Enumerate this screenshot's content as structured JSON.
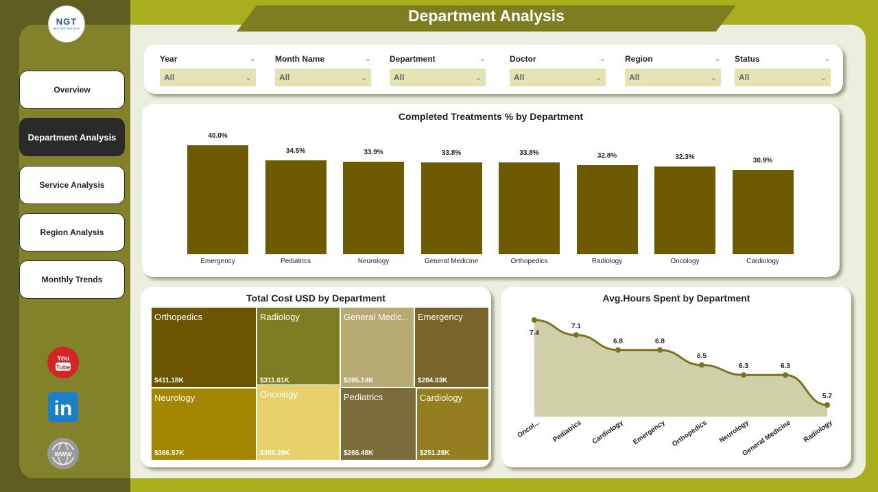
{
  "logo": {
    "text": "NGT",
    "subtext": "NEXT GEN TEMPLATES"
  },
  "title": "Department Analysis",
  "nav": [
    {
      "label": "Overview",
      "active": false
    },
    {
      "label": "Department Analysis",
      "active": true
    },
    {
      "label": "Service Analysis",
      "active": false
    },
    {
      "label": "Region Analysis",
      "active": false
    },
    {
      "label": "Monthly Trends",
      "active": false
    }
  ],
  "filters": [
    {
      "label": "Year",
      "value": "All"
    },
    {
      "label": "Month Name",
      "value": "All"
    },
    {
      "label": "Department",
      "value": "All"
    },
    {
      "label": "Doctor",
      "value": "All"
    },
    {
      "label": "Region",
      "value": "All"
    },
    {
      "label": "Status",
      "value": "All"
    }
  ],
  "social": [
    {
      "name": "youtube-icon",
      "label": "You Tube"
    },
    {
      "name": "linkedin-icon",
      "label": "in"
    },
    {
      "name": "website-icon",
      "label": "WWW"
    }
  ],
  "colors": {
    "accent": "#a9ae1e",
    "bar": "#6e5a00",
    "dark": "#2a2a2a"
  },
  "chart_data": [
    {
      "type": "bar",
      "title": "Completed Treatments % by Department",
      "categories": [
        "Emergency",
        "Pediatrics",
        "Neurology",
        "General Medicine",
        "Orthopedics",
        "Radiology",
        "Oncology",
        "Cardiology"
      ],
      "values": [
        40.0,
        34.5,
        33.9,
        33.8,
        33.8,
        32.8,
        32.3,
        30.9
      ],
      "labels": [
        "40.0%",
        "34.5%",
        "33.9%",
        "33.8%",
        "33.8%",
        "32.8%",
        "32.3%",
        "30.9%"
      ],
      "ylim": [
        0,
        40
      ]
    },
    {
      "type": "treemap",
      "title": "Total Cost USD by Department",
      "items": [
        {
          "name": "Orthopedics",
          "value": "$411.18K",
          "amount": 411.18,
          "color": "#6b5500"
        },
        {
          "name": "Radiology",
          "value": "$311.61K",
          "amount": 311.61,
          "color": "#7f7d22"
        },
        {
          "name": "General Medic...",
          "value": "$285.14K",
          "amount": 285.14,
          "color": "#b7aa73"
        },
        {
          "name": "Emergency",
          "value": "$284.93K",
          "amount": 284.93,
          "color": "#786428"
        },
        {
          "name": "Neurology",
          "value": "$366.57K",
          "amount": 366.57,
          "color": "#a48600"
        },
        {
          "name": "Oncology",
          "value": "$305.28K",
          "amount": 305.28,
          "color": "#e8d06c"
        },
        {
          "name": "Pediatrics",
          "value": "$265.48K",
          "amount": 265.48,
          "color": "#7c6c3c"
        },
        {
          "name": "Cardiology",
          "value": "$251.28K",
          "amount": 251.28,
          "color": "#947e20"
        }
      ]
    },
    {
      "type": "area",
      "title": "Avg.Hours Spent by Department",
      "categories": [
        "Oncol...",
        "Pediatrics",
        "Cardiology",
        "Emergency",
        "Orthopedics",
        "Neurology",
        "General Medicine",
        "Radiology"
      ],
      "values": [
        7.4,
        7.1,
        6.8,
        6.8,
        6.5,
        6.3,
        6.3,
        5.7
      ],
      "labels": [
        "7.4",
        "7.1",
        "6.8",
        "6.8",
        "6.5",
        "6.3",
        "6.3",
        "5.7"
      ],
      "ylim": [
        5.7,
        7.4
      ]
    }
  ]
}
